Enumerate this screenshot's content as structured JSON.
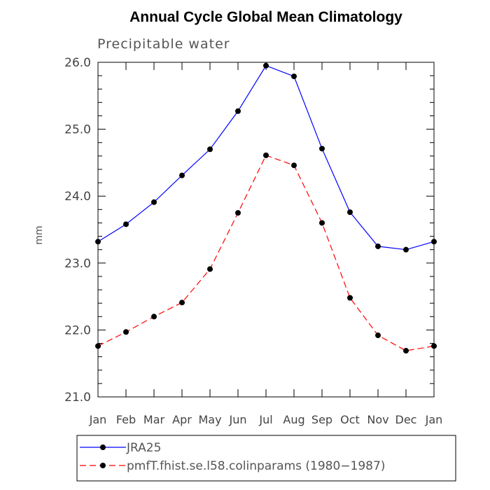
{
  "chart_data": {
    "type": "line",
    "title": "Annual Cycle Global Mean Climatology",
    "subtitle": "Precipitable water",
    "xlabel": "",
    "ylabel": "mm",
    "categories": [
      "Jan",
      "Feb",
      "Mar",
      "Apr",
      "May",
      "Jun",
      "Jul",
      "Aug",
      "Sep",
      "Oct",
      "Nov",
      "Dec",
      "Jan"
    ],
    "ylim": [
      21.0,
      26.0
    ],
    "yticks": [
      "21.0",
      "22.0",
      "23.0",
      "24.0",
      "25.0",
      "26.0"
    ],
    "grid": false,
    "legend_position": "bottom",
    "series": [
      {
        "name": "JRA25",
        "color": "#0000ff",
        "dash": "solid",
        "values": [
          23.32,
          23.58,
          23.91,
          24.31,
          24.7,
          25.27,
          25.95,
          25.79,
          24.71,
          23.76,
          23.25,
          23.2,
          23.32
        ]
      },
      {
        "name": "pmfT.fhist.se.l58.colinparams (1980−1987)",
        "color": "#ff0000",
        "dash": "dashed",
        "values": [
          21.76,
          21.97,
          22.2,
          22.41,
          22.91,
          23.75,
          24.61,
          24.46,
          23.6,
          22.48,
          21.92,
          21.69,
          21.76
        ]
      }
    ]
  }
}
